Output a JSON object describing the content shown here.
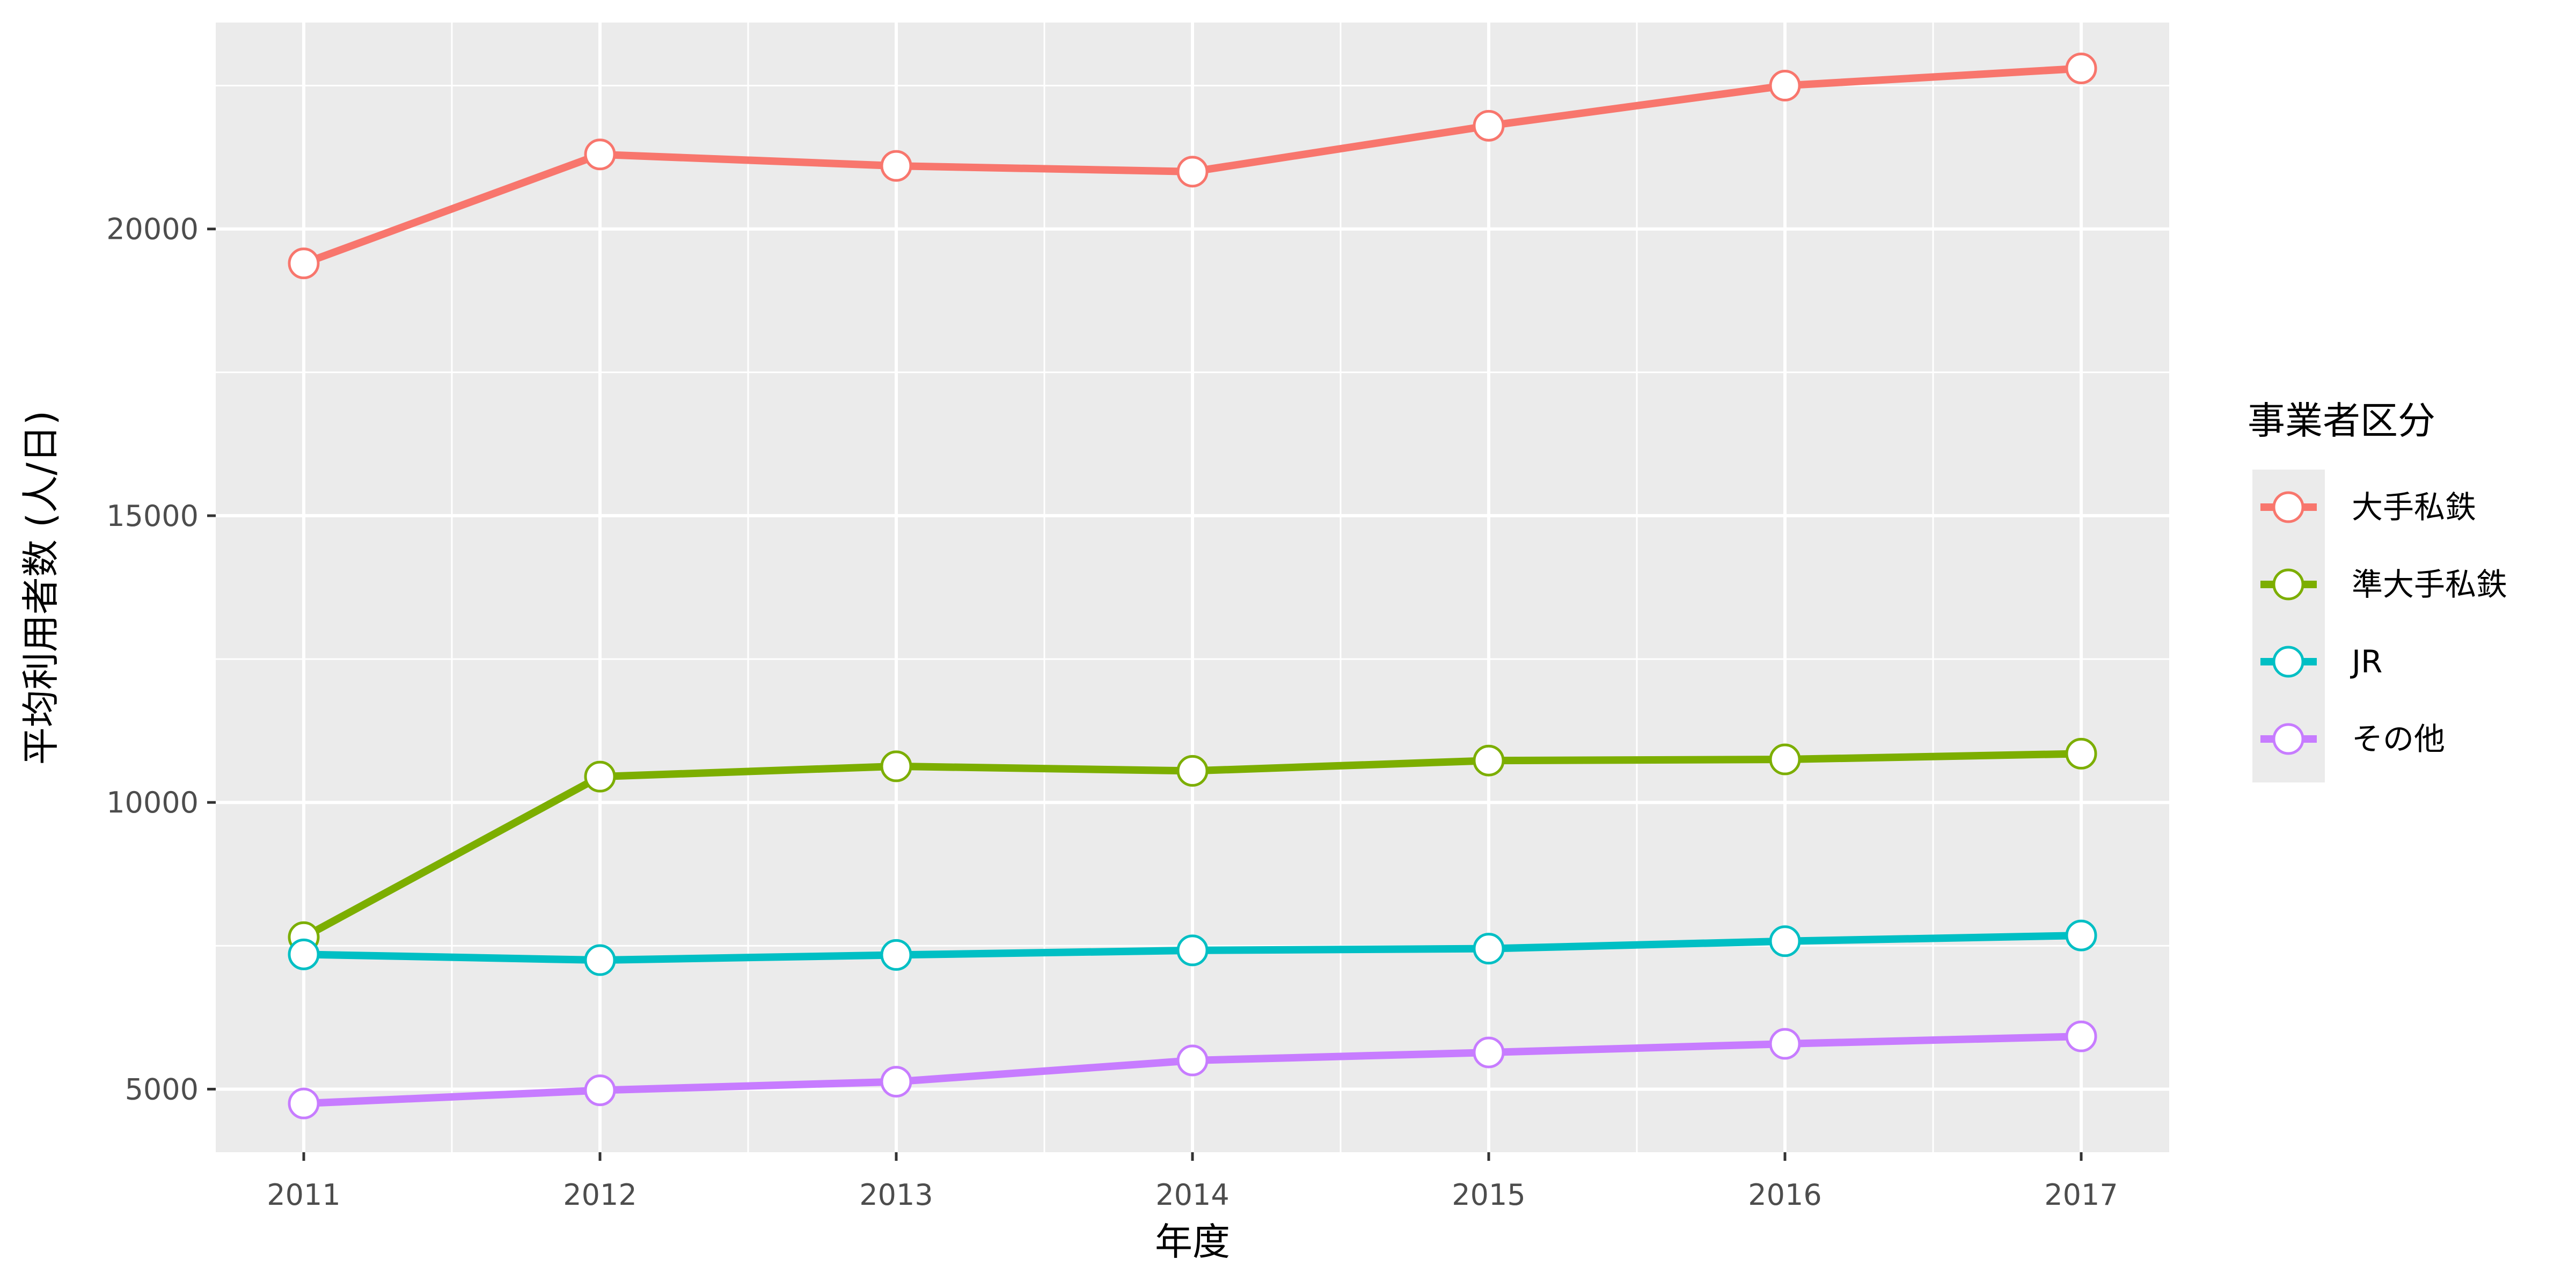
{
  "chart_data": {
    "type": "line",
    "x": [
      2011,
      2012,
      2013,
      2014,
      2015,
      2016,
      2017
    ],
    "xlabel": "年度",
    "ylabel": "平均利用者数 (人/日)",
    "ylim": [
      3900,
      23600
    ],
    "yticks": [
      5000,
      10000,
      15000,
      20000
    ],
    "xtick_labels": [
      "2011",
      "2012",
      "2013",
      "2014",
      "2015",
      "2016",
      "2017"
    ],
    "ytick_labels": [
      "5000",
      "10000",
      "15000",
      "20000"
    ],
    "grid": true,
    "legend": {
      "title": "事業者区分",
      "position": "right"
    },
    "series": [
      {
        "name": "大手私鉄",
        "color": "#F8766D",
        "values": [
          19400,
          21300,
          21100,
          21000,
          21800,
          22500,
          22800
        ]
      },
      {
        "name": "準大手私鉄",
        "color": "#7CAE00",
        "values": [
          7650,
          10450,
          10630,
          10550,
          10730,
          10750,
          10850
        ]
      },
      {
        "name": "JR",
        "color": "#00BFC4",
        "values": [
          7350,
          7250,
          7340,
          7420,
          7450,
          7580,
          7680
        ]
      },
      {
        "name": "その他",
        "color": "#C77CFF",
        "values": [
          4750,
          4980,
          5130,
          5500,
          5640,
          5790,
          5920
        ]
      }
    ]
  }
}
